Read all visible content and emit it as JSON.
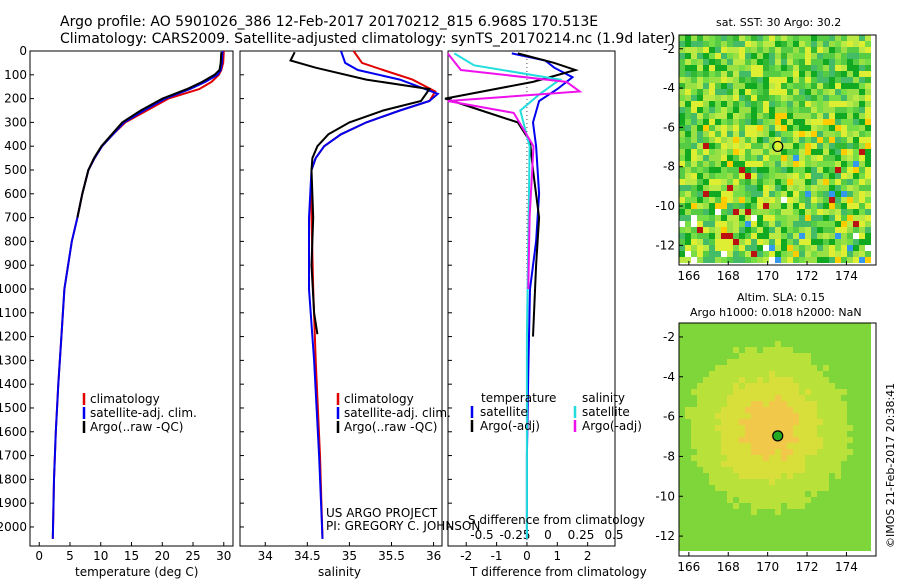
{
  "header": {
    "line1": "Argo profile: AO 5901026_386 12-Feb-2017 20170212_815 6.968S 170.513E",
    "line2": "Climatology: CARS2009. Satellite-adjusted climatology: synTS_20170214.nc (1.9d later)"
  },
  "colors": {
    "climatology": "#e00000",
    "satellite": "#0000ee",
    "argo": "#000000",
    "satellite_s": "#22dddd",
    "argo_s": "#ee11ee"
  },
  "chart_data": [
    {
      "type": "line",
      "panel": "temperature",
      "xlabel": "temperature (deg C)",
      "xlim": [
        -1.5,
        31.5
      ],
      "xticks": [
        "0",
        "5",
        "10",
        "15",
        "20",
        "25",
        "30"
      ],
      "ylim": [
        2080,
        0
      ],
      "yticks": [
        "0",
        "100",
        "200",
        "300",
        "400",
        "500",
        "600",
        "700",
        "800",
        "900",
        "1000",
        "1100",
        "1200",
        "1300",
        "1400",
        "1500",
        "1600",
        "1700",
        "1800",
        "1900",
        "2000"
      ],
      "legend": [
        "climatology",
        "satellite-adj. clim.",
        "Argo(..raw -QC)"
      ],
      "series": [
        {
          "name": "climatology",
          "color_key": "climatology",
          "x": [
            30,
            29.9,
            29.6,
            29.2,
            28,
            26,
            21,
            17.5,
            14,
            12,
            10.2,
            9,
            8,
            7,
            6.2,
            5.3,
            4.7,
            4.1,
            3.6,
            3.1,
            2.7,
            2.4,
            2.2
          ],
          "y": [
            0,
            50,
            80,
            100,
            130,
            160,
            200,
            250,
            300,
            350,
            400,
            450,
            500,
            600,
            700,
            800,
            900,
            1000,
            1200,
            1400,
            1600,
            1800,
            2050
          ]
        },
        {
          "name": "satellite-adj. clim.",
          "color_key": "satellite",
          "x": [
            29.8,
            29.7,
            29.5,
            29,
            27,
            24.5,
            20.5,
            17,
            13.8,
            12,
            10.2,
            9,
            8,
            7,
            6.2,
            5.3,
            4.7,
            4.1,
            3.6,
            3.1,
            2.7,
            2.4,
            2.2
          ],
          "y": [
            0,
            50,
            80,
            100,
            130,
            160,
            200,
            250,
            300,
            350,
            400,
            450,
            500,
            600,
            700,
            800,
            900,
            1000,
            1200,
            1400,
            1600,
            1800,
            2050
          ]
        },
        {
          "name": "Argo(..raw -QC)",
          "color_key": "argo",
          "x": [
            29.6,
            29.5,
            29.3,
            28.5,
            26.5,
            24,
            20,
            16.5,
            13.5,
            11.8,
            10.1,
            8.9,
            8,
            7,
            6.2
          ],
          "y": [
            5,
            50,
            80,
            100,
            130,
            160,
            200,
            250,
            300,
            350,
            400,
            450,
            500,
            600,
            700
          ]
        }
      ]
    },
    {
      "type": "line",
      "panel": "salinity",
      "xlabel": "salinity",
      "xlim": [
        33.7,
        36.1
      ],
      "xticks": [
        "34",
        "34.5",
        "35",
        "35.5",
        "36"
      ],
      "ylim": [
        2080,
        0
      ],
      "legend": [
        "climatology",
        "satellite-adj. clim.",
        "Argo(..raw -QC)"
      ],
      "annotation": [
        "US ARGO PROJECT",
        "PI: GREGORY C. JOHNSON"
      ],
      "series": [
        {
          "name": "climatology",
          "color_key": "climatology",
          "x": [
            35.05,
            35.15,
            35.4,
            35.75,
            36.02,
            35.95,
            35.6,
            35.2,
            34.9,
            34.7,
            34.6,
            34.55,
            34.55,
            34.57,
            34.6,
            34.65,
            34.68
          ],
          "y": [
            0,
            50,
            80,
            120,
            170,
            210,
            250,
            300,
            350,
            400,
            450,
            500,
            700,
            1000,
            1300,
            1700,
            2050
          ]
        },
        {
          "name": "satellite-adj. clim.",
          "color_key": "satellite",
          "x": [
            34.9,
            34.95,
            35.1,
            35.6,
            36.05,
            35.95,
            35.6,
            35.2,
            34.9,
            34.7,
            34.6,
            34.55,
            34.52,
            34.52,
            34.58,
            34.64,
            34.68
          ],
          "y": [
            0,
            50,
            80,
            120,
            180,
            210,
            250,
            300,
            350,
            400,
            450,
            500,
            700,
            1000,
            1300,
            1700,
            2050
          ]
        },
        {
          "name": "Argo(..raw -QC)",
          "color_key": "argo",
          "x": [
            34.35,
            34.3,
            34.6,
            35.2,
            35.95,
            35.85,
            35.4,
            35.0,
            34.75,
            34.62,
            34.56,
            34.55,
            34.57,
            34.55,
            34.58,
            34.62
          ],
          "y": [
            5,
            40,
            70,
            120,
            160,
            210,
            250,
            300,
            350,
            400,
            450,
            500,
            700,
            900,
            1100,
            1190
          ]
        }
      ]
    },
    {
      "type": "line",
      "panel": "difference",
      "xlabel": "T difference from climatology",
      "xlabel_top": "S difference from climatology",
      "xlim": [
        -2.6,
        2.9
      ],
      "xticks": [
        "-2",
        "-1",
        "0",
        "1",
        "2"
      ],
      "xticks_s": [
        "-0.5",
        "-0.25",
        "0",
        "0.25",
        "0.5"
      ],
      "ylim": [
        2080,
        0
      ],
      "legend_t_title": "temperature",
      "legend_s_title": "salinity",
      "legend_t": [
        "satellite",
        "Argo(-adj)"
      ],
      "legend_s": [
        "satellite",
        "Argo(-adj)"
      ],
      "series": [
        {
          "name": "T satellite",
          "color_key": "satellite",
          "x": [
            -0.5,
            0.6,
            0.9,
            1.5,
            1.0,
            0.4,
            0.2,
            0.3,
            0.4,
            0.3,
            0.1,
            0.05,
            0,
            0
          ],
          "y": [
            10,
            40,
            70,
            110,
            160,
            210,
            300,
            400,
            600,
            800,
            1000,
            1300,
            1700,
            2050
          ]
        },
        {
          "name": "T Argo(-adj)",
          "color_key": "argo",
          "x": [
            -0.3,
            0.9,
            1.6,
            0.2,
            -2.7,
            -1.5,
            -0.3,
            0.1,
            0.2,
            0.4,
            0.3,
            0.2
          ],
          "y": [
            10,
            50,
            80,
            130,
            200,
            250,
            300,
            380,
            500,
            700,
            900,
            1200
          ]
        },
        {
          "name": "S satellite",
          "color_key": "satellite_s",
          "x": [
            -0.55,
            -0.4,
            0.25,
            0.1,
            -0.05,
            0.02,
            0.01,
            0,
            0,
            0
          ],
          "y": [
            10,
            60,
            120,
            180,
            250,
            400,
            800,
            1200,
            1600,
            2050
          ]
        },
        {
          "name": "S Argo(-adj)",
          "color_key": "argo_s",
          "x": [
            -0.6,
            -0.5,
            0.3,
            0.4,
            -0.6,
            -0.1,
            0.05,
            0.02,
            0.01
          ],
          "y": [
            10,
            80,
            130,
            170,
            210,
            260,
            400,
            700,
            1000
          ]
        }
      ]
    },
    {
      "type": "heatmap",
      "panel": "sat-sst",
      "title": "sat. SST: 30 Argo: 30.2",
      "xlim": [
        165.5,
        175.5
      ],
      "ylim": [
        -13,
        -1.3
      ],
      "xticks": [
        "166",
        "168",
        "170",
        "172",
        "174"
      ],
      "yticks": [
        "-2",
        "-4",
        "-6",
        "-8",
        "-10",
        "-12"
      ],
      "marker": {
        "lon": 170.513,
        "lat": -6.968
      }
    },
    {
      "type": "heatmap",
      "panel": "altim-sla",
      "title_line1": "Altim. SLA: 0.15",
      "title_line2": "Argo h1000: 0.018 h2000: NaN",
      "xlim": [
        165.5,
        175.5
      ],
      "ylim": [
        -13,
        -1.3
      ],
      "xticks": [
        "166",
        "168",
        "170",
        "172",
        "174"
      ],
      "yticks": [
        "-2",
        "-4",
        "-6",
        "-8",
        "-10",
        "-12"
      ],
      "marker": {
        "lon": 170.513,
        "lat": -6.968
      }
    }
  ],
  "footer": {
    "credit": "©IMOS 21-Feb-2017 20:38:41"
  }
}
